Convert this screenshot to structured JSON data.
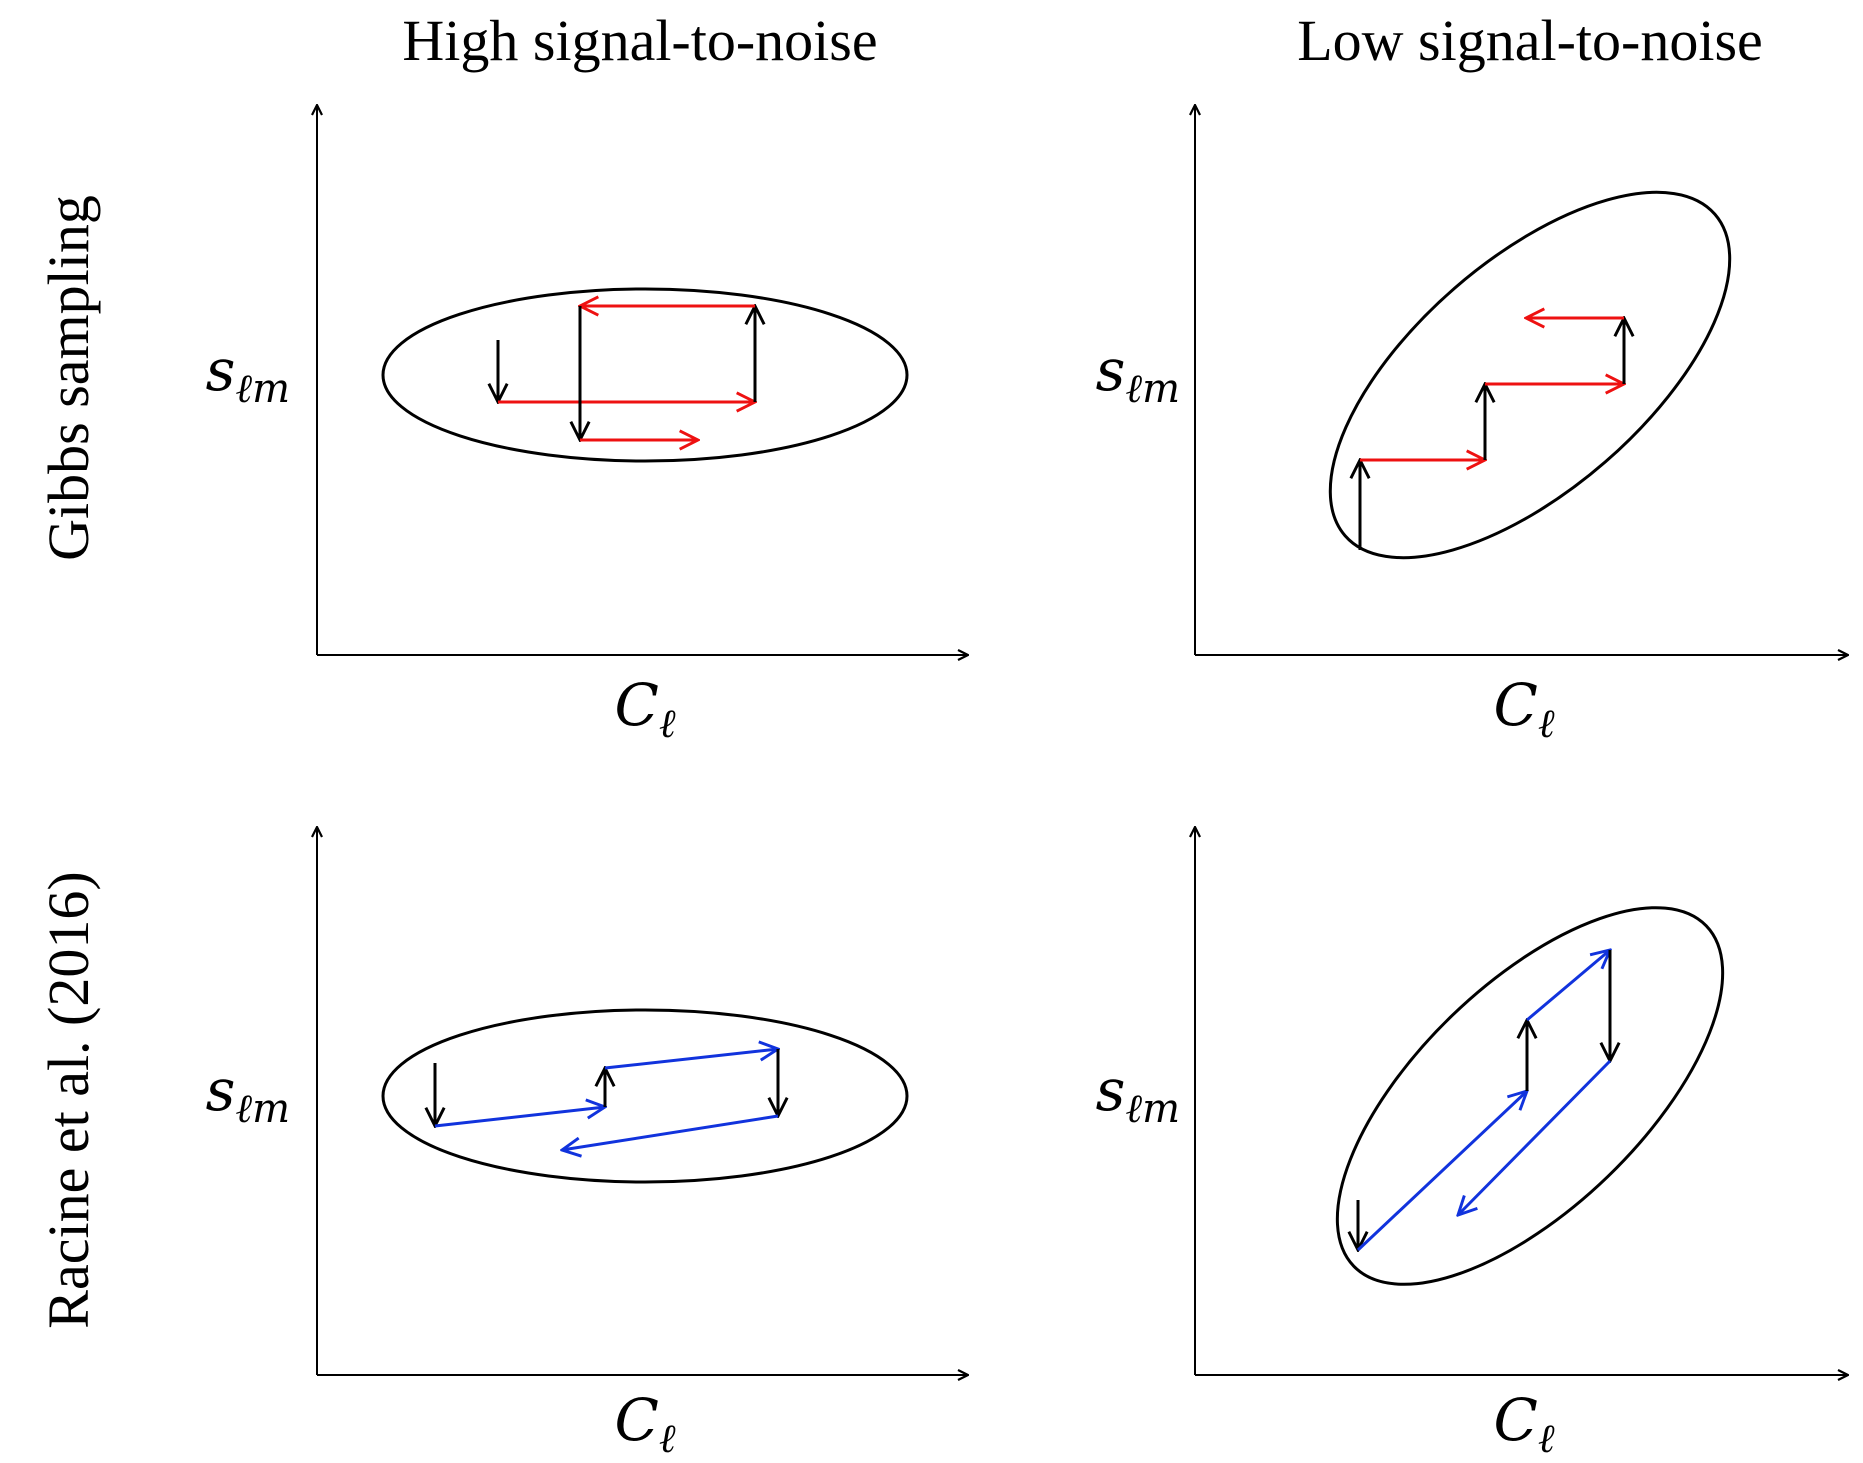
{
  "columns": [
    {
      "title": "High signal-to-noise"
    },
    {
      "title": "Low signal-to-noise"
    }
  ],
  "rows": [
    {
      "title": "Gibbs sampling"
    },
    {
      "title": "Racine et al. (2016)"
    }
  ],
  "axes": {
    "x": {
      "symbol": "C",
      "subscript": "ℓ"
    },
    "y": {
      "symbol": "s",
      "subscript": "ℓm"
    }
  },
  "colors": {
    "axis": "#000000",
    "ellipse": "#000000",
    "vertical_step": "#000000",
    "gibbs_step": "#ee1111",
    "racine_step": "#1133dd"
  }
}
